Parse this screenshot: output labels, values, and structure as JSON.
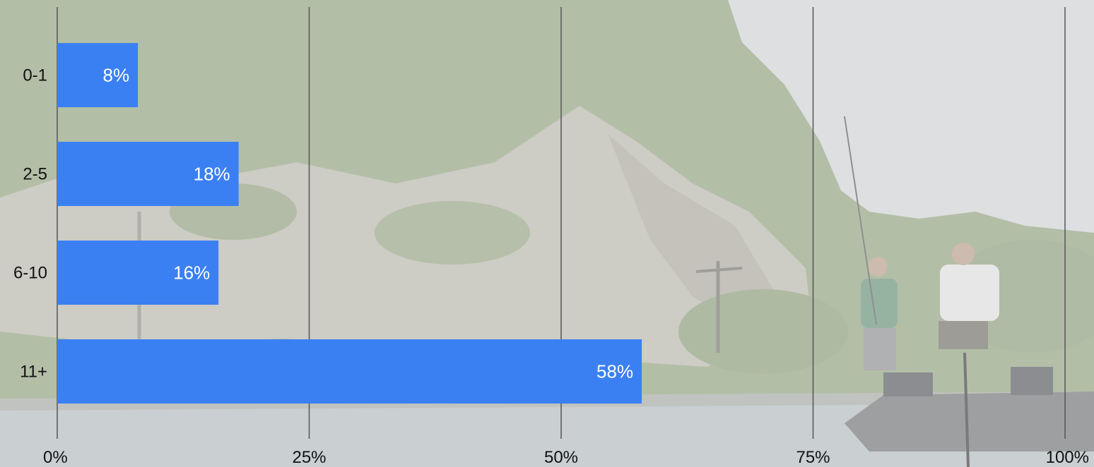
{
  "chart_data": {
    "type": "bar",
    "orientation": "horizontal",
    "categories": [
      "0-1",
      "2-5",
      "6-10",
      "11+"
    ],
    "values": [
      8,
      18,
      16,
      58
    ],
    "data_labels": [
      "8%",
      "18%",
      "16%",
      "58%"
    ],
    "xlim": [
      0,
      100
    ],
    "x_ticks": [
      0,
      25,
      50,
      75,
      100
    ],
    "x_tick_labels": [
      "0%",
      "25%",
      "50%",
      "75%",
      "100%"
    ],
    "grid": "vertical",
    "legend": "none",
    "colors": {
      "bar": "#3b80f3",
      "gridline": "#555555",
      "text": "#111111",
      "data_label": "#ffffff"
    }
  },
  "background": {
    "description_icon": "lake-cliff-fishing-boat-photo"
  }
}
